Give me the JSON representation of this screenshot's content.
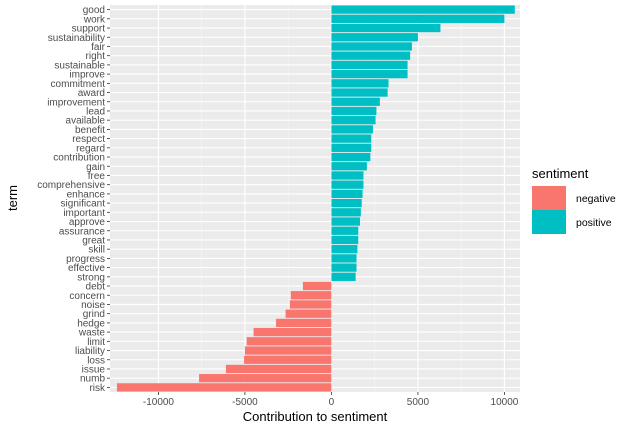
{
  "chart_data": {
    "type": "bar",
    "orientation": "horizontal",
    "xlabel": "Contribution to sentiment",
    "ylabel": "term",
    "xlim": [
      -12800,
      10900
    ],
    "x_ticks": [
      -10000,
      -5000,
      0,
      5000,
      10000
    ],
    "x_tick_labels": [
      "-10000",
      "-5000",
      "0",
      "5000",
      "10000"
    ],
    "grid": true,
    "legend": {
      "title": "sentiment",
      "position": "right",
      "entries": [
        {
          "label": "negative",
          "color": "#F8766D"
        },
        {
          "label": "positive",
          "color": "#00BFC4"
        }
      ]
    },
    "categories": [
      "good",
      "work",
      "support",
      "sustainability",
      "fair",
      "right",
      "sustainable",
      "improve",
      "commitment",
      "award",
      "improvement",
      "lead",
      "available",
      "benefit",
      "respect",
      "regard",
      "contribution",
      "gain",
      "free",
      "comprehensive",
      "enhance",
      "significant",
      "important",
      "approve",
      "assurance",
      "great",
      "skill",
      "progress",
      "effective",
      "strong",
      "debt",
      "concern",
      "noise",
      "grind",
      "hedge",
      "waste",
      "limit",
      "liability",
      "loss",
      "issue",
      "numb",
      "risk"
    ],
    "values": [
      10600,
      10000,
      6300,
      5000,
      4650,
      4550,
      4400,
      4400,
      3300,
      3250,
      2800,
      2600,
      2550,
      2400,
      2300,
      2300,
      2250,
      2050,
      1850,
      1850,
      1800,
      1750,
      1700,
      1650,
      1550,
      1550,
      1500,
      1450,
      1450,
      1400,
      -1650,
      -2350,
      -2400,
      -2650,
      -3200,
      -4500,
      -4900,
      -5000,
      -5050,
      -6100,
      -7650,
      -12400
    ],
    "sentiment": [
      "positive",
      "positive",
      "positive",
      "positive",
      "positive",
      "positive",
      "positive",
      "positive",
      "positive",
      "positive",
      "positive",
      "positive",
      "positive",
      "positive",
      "positive",
      "positive",
      "positive",
      "positive",
      "positive",
      "positive",
      "positive",
      "positive",
      "positive",
      "positive",
      "positive",
      "positive",
      "positive",
      "positive",
      "positive",
      "positive",
      "negative",
      "negative",
      "negative",
      "negative",
      "negative",
      "negative",
      "negative",
      "negative",
      "negative",
      "negative",
      "negative",
      "negative"
    ]
  }
}
